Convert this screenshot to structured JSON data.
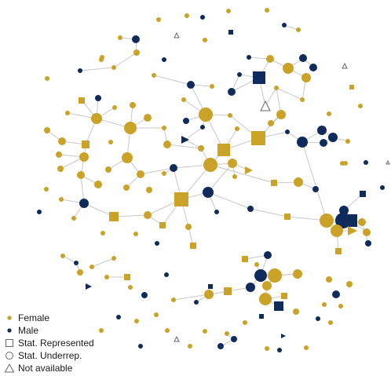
{
  "colors": {
    "female": "#C9A227",
    "male": "#0E2B5C",
    "edge": "#C8C8C8",
    "outline": "#666666"
  },
  "legend": [
    {
      "label": "Female",
      "symbol": "dot",
      "color": "#C9A227"
    },
    {
      "label": "Male",
      "symbol": "dot",
      "color": "#0E2B5C"
    },
    {
      "label": "Stat. Represented",
      "symbol": "square",
      "color": "#666666"
    },
    {
      "label": "Stat. Underrep.",
      "symbol": "circle",
      "color": "#666666"
    },
    {
      "label": "Not available",
      "symbol": "triangle",
      "color": "#666666"
    }
  ]
}
